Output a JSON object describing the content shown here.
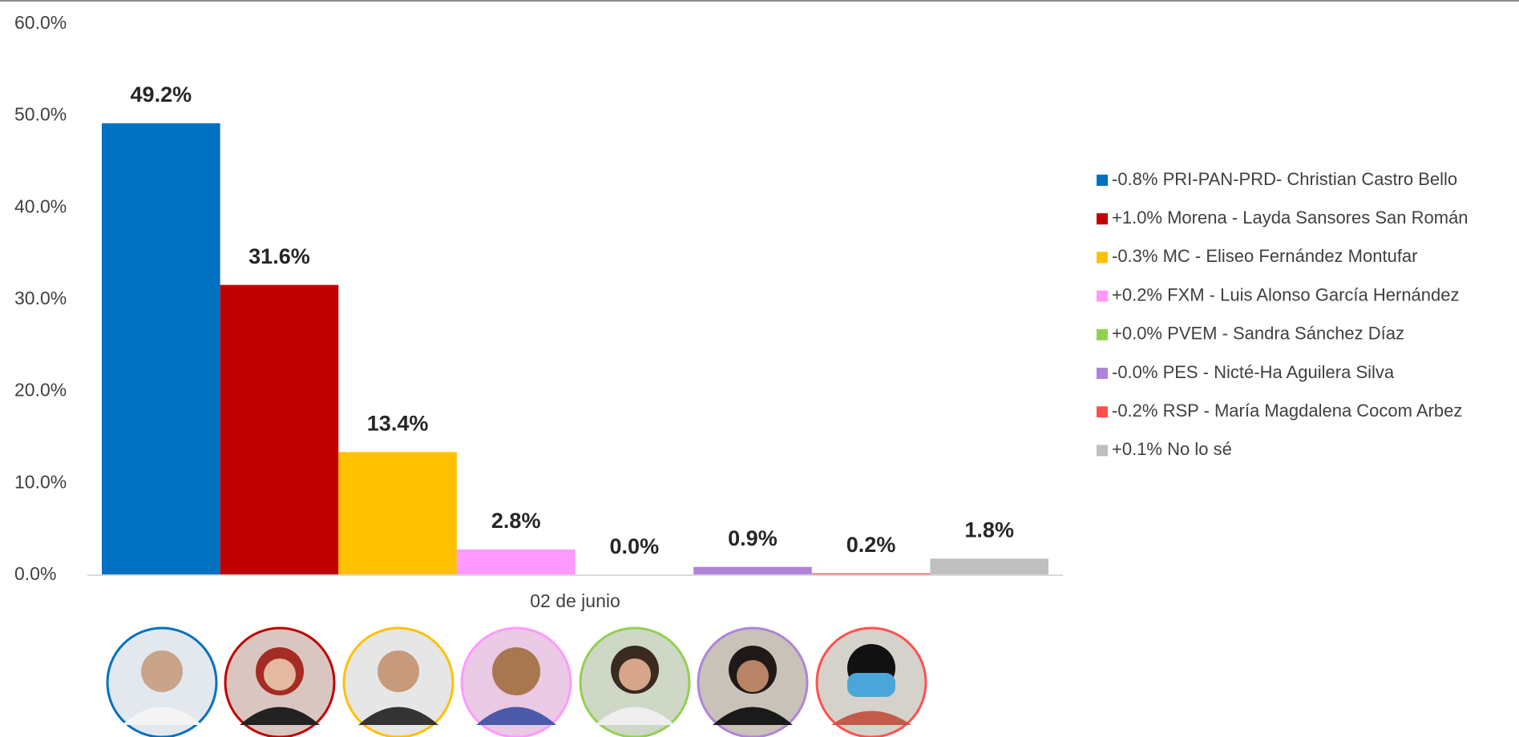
{
  "chart_data": {
    "type": "bar",
    "categories": [
      "02 de junio"
    ],
    "series": [
      {
        "name": "-0.8% PRI-PAN-PRD- Christian Castro Bello",
        "color": "#0070c0",
        "values": [
          49.2
        ],
        "value_labels": [
          "49.2%"
        ]
      },
      {
        "name": "+1.0% Morena - Layda Sansores San Román",
        "color": "#c00000",
        "values": [
          31.6
        ],
        "value_labels": [
          "31.6%"
        ]
      },
      {
        "name": "-0.3% MC - Eliseo Fernández Montufar",
        "color": "#ffc000",
        "values": [
          13.4
        ],
        "value_labels": [
          "13.4%"
        ]
      },
      {
        "name": "+0.2% FXM - Luis Alonso García Hernández",
        "color": "#ff99ff",
        "values": [
          2.8
        ],
        "value_labels": [
          "2.8%"
        ]
      },
      {
        "name": "+0.0% PVEM - Sandra Sánchez Díaz",
        "color": "#92d050",
        "values": [
          0.0
        ],
        "value_labels": [
          "0.0%"
        ]
      },
      {
        "name": "-0.0% PES - Nicté-Ha Aguilera Silva",
        "color": "#b083d8",
        "values": [
          0.9
        ],
        "value_labels": [
          "0.9%"
        ]
      },
      {
        "name": "-0.2% RSP - María Magdalena Cocom Arbez",
        "color": "#ff5050",
        "values": [
          0.2
        ],
        "value_labels": [
          "0.2%"
        ]
      },
      {
        "name": "+0.1% No lo sé",
        "color": "#bfbfbf",
        "values": [
          1.8
        ],
        "value_labels": [
          "1.8%"
        ]
      }
    ],
    "ylim": [
      0,
      60
    ],
    "yticks": [
      {
        "value": 0,
        "label": "0.0%"
      },
      {
        "value": 10,
        "label": "10.0%"
      },
      {
        "value": 20,
        "label": "20.0%"
      },
      {
        "value": 30,
        "label": "30.0%"
      },
      {
        "value": 40,
        "label": "40.0%"
      },
      {
        "value": 50,
        "label": "50.0%"
      },
      {
        "value": 60,
        "label": "60.0%"
      }
    ],
    "grid": false,
    "legend": "right"
  }
}
